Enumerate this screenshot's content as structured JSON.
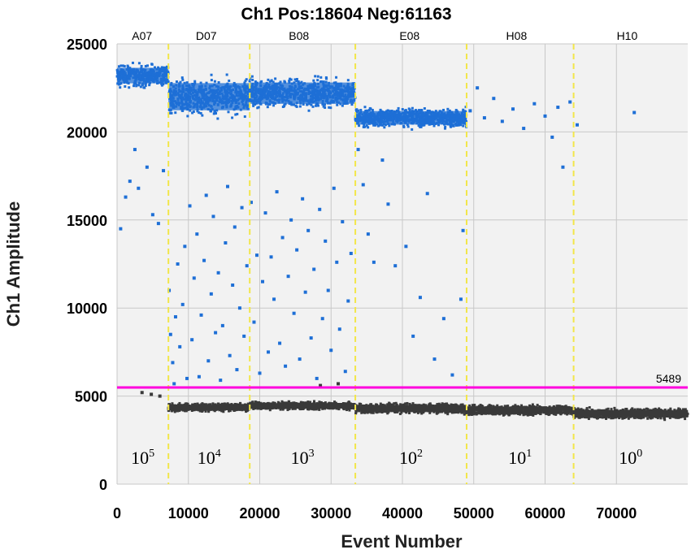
{
  "chart_data": {
    "type": "scatter",
    "title": "Ch1 Pos:18604 Neg:61163",
    "xlabel": "Event Number",
    "ylabel": "Ch1 Amplitude",
    "xlim": [
      0,
      80000
    ],
    "ylim": [
      0,
      25000
    ],
    "x_ticks": [
      {
        "value": 0,
        "label": "0"
      },
      {
        "value": 10000,
        "label": "10000"
      },
      {
        "value": 20000,
        "label": "20000"
      },
      {
        "value": 30000,
        "label": "30000"
      },
      {
        "value": 40000,
        "label": "40000"
      },
      {
        "value": 50000,
        "label": "50000"
      },
      {
        "value": 60000,
        "label": "60000"
      },
      {
        "value": 70000,
        "label": "70000"
      }
    ],
    "y_ticks": [
      {
        "value": 0,
        "label": "0"
      },
      {
        "value": 5000,
        "label": "5000"
      },
      {
        "value": 10000,
        "label": "10000"
      },
      {
        "value": 15000,
        "label": "15000"
      },
      {
        "value": 20000,
        "label": "20000"
      },
      {
        "value": 25000,
        "label": "25000"
      }
    ],
    "grid": true,
    "threshold": {
      "value": 5489,
      "label": "5489",
      "color": "#ff00dd"
    },
    "wells": [
      {
        "name": "A07",
        "x_label_pos": 3500,
        "boundary": 7200,
        "dilution_base": "10",
        "dilution_exp": "5"
      },
      {
        "name": "D07",
        "x_label_pos": 12500,
        "boundary": 18600,
        "dilution_base": "10",
        "dilution_exp": "4"
      },
      {
        "name": "B08",
        "x_label_pos": 25500,
        "boundary": 33400,
        "dilution_base": "10",
        "dilution_exp": "3"
      },
      {
        "name": "E08",
        "x_label_pos": 41000,
        "boundary": 49000,
        "dilution_base": "10",
        "dilution_exp": "2"
      },
      {
        "name": "H08",
        "x_label_pos": 56000,
        "boundary": 64000,
        "dilution_base": "10",
        "dilution_exp": "1"
      },
      {
        "name": "H10",
        "x_label_pos": 71500,
        "boundary": 80000,
        "dilution_base": "10",
        "dilution_exp": "0"
      }
    ],
    "well_dividers": [
      7200,
      18600,
      33400,
      49000,
      64000
    ],
    "series": [
      {
        "role": "positive droplets",
        "color": "#1e6fd6",
        "bands": [
          {
            "x_range": [
              0,
              7200
            ],
            "y_center": 23200,
            "y_spread": 800
          },
          {
            "x_range": [
              7200,
              18600
            ],
            "y_center": 22000,
            "y_spread": 1400
          },
          {
            "x_range": [
              18600,
              33400
            ],
            "y_center": 22200,
            "y_spread": 1100
          },
          {
            "x_range": [
              33400,
              49000
            ],
            "y_center": 20800,
            "y_spread": 700
          }
        ],
        "scattered_points": [
          [
            500,
            14500
          ],
          [
            1200,
            16300
          ],
          [
            1800,
            17200
          ],
          [
            2500,
            19000
          ],
          [
            3000,
            16800
          ],
          [
            4200,
            18000
          ],
          [
            5000,
            15300
          ],
          [
            5800,
            14800
          ],
          [
            6500,
            17800
          ],
          [
            7300,
            11000
          ],
          [
            7500,
            8500
          ],
          [
            7800,
            6900
          ],
          [
            8000,
            5700
          ],
          [
            8200,
            9500
          ],
          [
            8500,
            12500
          ],
          [
            8800,
            7800
          ],
          [
            9200,
            10200
          ],
          [
            9500,
            13500
          ],
          [
            9800,
            6000
          ],
          [
            10200,
            15800
          ],
          [
            10500,
            8200
          ],
          [
            10800,
            11700
          ],
          [
            11200,
            14200
          ],
          [
            11500,
            6100
          ],
          [
            11800,
            9600
          ],
          [
            12200,
            12700
          ],
          [
            12500,
            16400
          ],
          [
            12800,
            7000
          ],
          [
            13200,
            10800
          ],
          [
            13500,
            15200
          ],
          [
            13800,
            8600
          ],
          [
            14200,
            12000
          ],
          [
            14500,
            5900
          ],
          [
            14800,
            9000
          ],
          [
            15200,
            13700
          ],
          [
            15500,
            16900
          ],
          [
            15800,
            7300
          ],
          [
            16200,
            11300
          ],
          [
            16500,
            14600
          ],
          [
            16800,
            6500
          ],
          [
            17200,
            10000
          ],
          [
            17500,
            15700
          ],
          [
            17800,
            8400
          ],
          [
            18200,
            12400
          ],
          [
            18800,
            16000
          ],
          [
            19200,
            9200
          ],
          [
            19600,
            13000
          ],
          [
            20000,
            6300
          ],
          [
            20400,
            11500
          ],
          [
            20800,
            15400
          ],
          [
            21200,
            7500
          ],
          [
            21600,
            12900
          ],
          [
            22000,
            10500
          ],
          [
            22400,
            16600
          ],
          [
            22800,
            8000
          ],
          [
            23200,
            14000
          ],
          [
            23600,
            6700
          ],
          [
            24000,
            11800
          ],
          [
            24400,
            15000
          ],
          [
            24800,
            9700
          ],
          [
            25200,
            13300
          ],
          [
            25600,
            7100
          ],
          [
            26000,
            16200
          ],
          [
            26400,
            10900
          ],
          [
            26800,
            14400
          ],
          [
            27200,
            8300
          ],
          [
            27600,
            12200
          ],
          [
            28000,
            6000
          ],
          [
            28400,
            15600
          ],
          [
            28800,
            9400
          ],
          [
            29200,
            13800
          ],
          [
            29600,
            11000
          ],
          [
            30000,
            7600
          ],
          [
            30400,
            16800
          ],
          [
            30800,
            12600
          ],
          [
            31200,
            8800
          ],
          [
            31600,
            14900
          ],
          [
            32000,
            6400
          ],
          [
            32400,
            10400
          ],
          [
            32800,
            13100
          ],
          [
            33800,
            19000
          ],
          [
            34500,
            17000
          ],
          [
            35200,
            14200
          ],
          [
            36000,
            12600
          ],
          [
            37200,
            18400
          ],
          [
            38000,
            15900
          ],
          [
            39000,
            12400
          ],
          [
            40500,
            13500
          ],
          [
            41500,
            8400
          ],
          [
            42500,
            10600
          ],
          [
            43500,
            16500
          ],
          [
            44500,
            7100
          ],
          [
            45800,
            9400
          ],
          [
            47000,
            6200
          ],
          [
            48200,
            10500
          ],
          [
            48500,
            14400
          ],
          [
            49500,
            21200
          ],
          [
            50500,
            22500
          ],
          [
            51500,
            20800
          ],
          [
            52800,
            21900
          ],
          [
            54000,
            20600
          ],
          [
            55500,
            21300
          ],
          [
            57000,
            20200
          ],
          [
            58500,
            21600
          ],
          [
            60000,
            20900
          ],
          [
            61000,
            19700
          ],
          [
            61800,
            21400
          ],
          [
            62500,
            18000
          ],
          [
            63500,
            21700
          ],
          [
            64500,
            20400
          ],
          [
            72500,
            21100
          ]
        ]
      },
      {
        "role": "negative droplets",
        "color": "#3a3a3a",
        "bands": [
          {
            "x_range": [
              7200,
              18600
            ],
            "y_center": 4350,
            "y_spread": 280
          },
          {
            "x_range": [
              18600,
              33400
            ],
            "y_center": 4450,
            "y_spread": 280
          },
          {
            "x_range": [
              33400,
              49000
            ],
            "y_center": 4300,
            "y_spread": 380
          },
          {
            "x_range": [
              49000,
              64000
            ],
            "y_center": 4200,
            "y_spread": 360
          },
          {
            "x_range": [
              64000,
              80000
            ],
            "y_center": 4000,
            "y_spread": 380
          }
        ],
        "scattered_points": [
          [
            3500,
            5200
          ],
          [
            4800,
            5100
          ],
          [
            6000,
            5000
          ],
          [
            28500,
            5600
          ],
          [
            31000,
            5700
          ]
        ]
      }
    ]
  },
  "colors": {
    "plot_bg": "#f2f2f2",
    "grid": "#c8c8c8",
    "divider": "#f2e64a",
    "positive": "#1e6fd6",
    "negative": "#3a3a3a",
    "threshold": "#ff00dd"
  }
}
